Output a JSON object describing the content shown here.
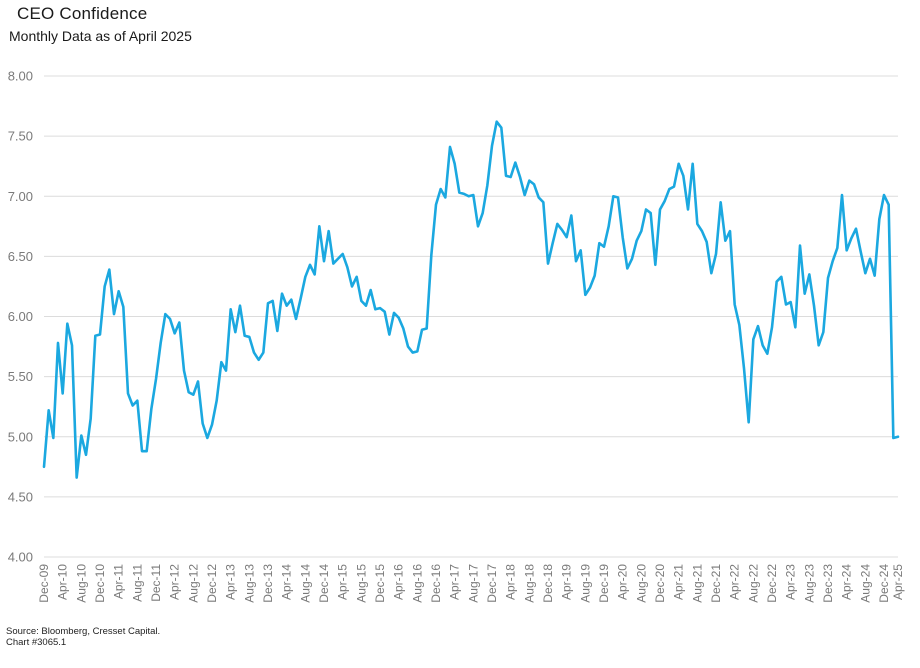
{
  "header": {
    "title": "CEO Confidence",
    "subtitle": "Monthly Data as of April 2025"
  },
  "footer": {
    "source": "Source: Bloomberg, Cresset Capital.",
    "chart_id": "Chart #3065.1"
  },
  "colors": {
    "line": "#1ba8e0",
    "grid": "#dcdcdc",
    "axis_text": "#7a7a7a"
  },
  "chart_data": {
    "type": "line",
    "title": "CEO Confidence",
    "subtitle": "Monthly Data as of April 2025",
    "ylim": [
      4.0,
      8.0
    ],
    "y_ticks": [
      "4.00",
      "4.50",
      "5.00",
      "5.50",
      "6.00",
      "6.50",
      "7.00",
      "7.50",
      "8.00"
    ],
    "x_tick_labels": [
      "Dec-09",
      "Apr-10",
      "Aug-10",
      "Dec-10",
      "Apr-11",
      "Aug-11",
      "Dec-11",
      "Apr-12",
      "Aug-12",
      "Dec-12",
      "Apr-13",
      "Aug-13",
      "Dec-13",
      "Apr-14",
      "Aug-14",
      "Dec-14",
      "Apr-15",
      "Aug-15",
      "Dec-15",
      "Apr-16",
      "Aug-16",
      "Dec-16",
      "Apr-17",
      "Aug-17",
      "Dec-17",
      "Apr-18",
      "Aug-18",
      "Dec-18",
      "Apr-19",
      "Aug-19",
      "Dec-19",
      "Apr-20",
      "Aug-20",
      "Dec-20",
      "Apr-21",
      "Aug-21",
      "Dec-21",
      "Apr-22",
      "Aug-22",
      "Dec-22",
      "Apr-23",
      "Aug-23",
      "Dec-23",
      "Apr-24",
      "Aug-24",
      "Dec-24",
      "Apr-25"
    ],
    "grid": true,
    "legend": "none",
    "series": [
      {
        "x_start": "Dec-09",
        "x_end": "Apr-25",
        "values": [
          4.75,
          5.22,
          4.99,
          5.78,
          5.36,
          5.94,
          5.76,
          4.66,
          5.01,
          4.85,
          5.15,
          5.84,
          5.85,
          6.25,
          6.39,
          6.02,
          6.21,
          6.08,
          5.36,
          5.26,
          5.3,
          4.88,
          4.88,
          5.23,
          5.48,
          5.78,
          6.02,
          5.98,
          5.86,
          5.95,
          5.55,
          5.37,
          5.35,
          5.46,
          5.11,
          4.99,
          5.1,
          5.3,
          5.62,
          5.55,
          6.06,
          5.87,
          6.09,
          5.84,
          5.83,
          5.7,
          5.64,
          5.7,
          6.11,
          6.13,
          5.88,
          6.19,
          6.09,
          6.14,
          5.98,
          6.15,
          6.33,
          6.43,
          6.35,
          6.75,
          6.46,
          6.71,
          6.44,
          6.48,
          6.52,
          6.41,
          6.25,
          6.33,
          6.13,
          6.09,
          6.22,
          6.06,
          6.07,
          6.04,
          5.85,
          6.03,
          5.99,
          5.9,
          5.75,
          5.7,
          5.71,
          5.89,
          5.9,
          6.51,
          6.93,
          7.06,
          6.99,
          7.41,
          7.27,
          7.03,
          7.02,
          7.0,
          7.01,
          6.75,
          6.86,
          7.09,
          7.42,
          7.62,
          7.57,
          7.17,
          7.16,
          7.28,
          7.16,
          7.01,
          7.13,
          7.1,
          6.99,
          6.95,
          6.44,
          6.61,
          6.77,
          6.72,
          6.66,
          6.84,
          6.46,
          6.55,
          6.18,
          6.24,
          6.34,
          6.61,
          6.58,
          6.75,
          7.0,
          6.99,
          6.66,
          6.4,
          6.48,
          6.63,
          6.71,
          6.89,
          6.86,
          6.43,
          6.89,
          6.96,
          7.06,
          7.08,
          7.27,
          7.17,
          6.89,
          7.27,
          6.77,
          6.71,
          6.62,
          6.36,
          6.52,
          6.95,
          6.63,
          6.71,
          6.1,
          5.93,
          5.57,
          5.12,
          5.81,
          5.92,
          5.76,
          5.69,
          5.91,
          6.29,
          6.33,
          6.1,
          6.12,
          5.91,
          6.59,
          6.19,
          6.35,
          6.09,
          5.76,
          5.87,
          6.32,
          6.46,
          6.57,
          7.01,
          6.55,
          6.65,
          6.73,
          6.54,
          6.36,
          6.48,
          6.34,
          6.81,
          7.01,
          6.93,
          4.99,
          5.0
        ]
      }
    ]
  }
}
